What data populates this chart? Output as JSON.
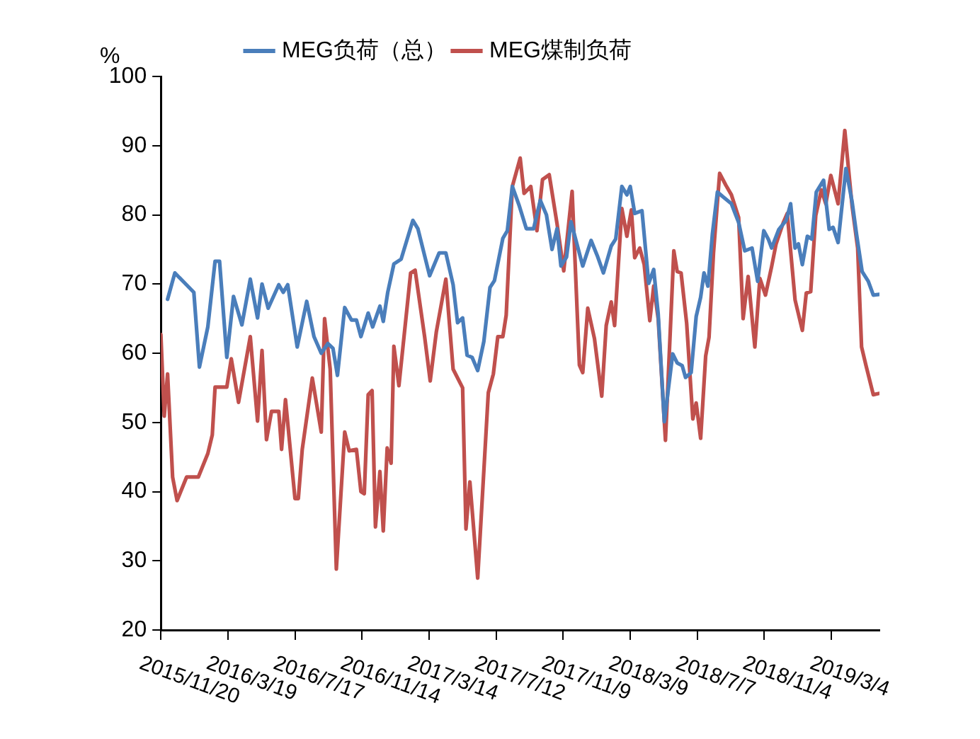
{
  "chart_data": {
    "type": "line",
    "ylabel": "%",
    "legend": "top",
    "marker": "none",
    "line_style": "solid",
    "grid": false,
    "xlim": [
      "2015-11-20",
      "2019-05-29"
    ],
    "xticks": [
      {
        "value": "2015-11-20",
        "label": "2015/11/20"
      },
      {
        "value": "2016-03-19",
        "label": "2016/3/19"
      },
      {
        "value": "2016-07-17",
        "label": "2016/7/17"
      },
      {
        "value": "2016-11-14",
        "label": "2016/11/14"
      },
      {
        "value": "2017-03-14",
        "label": "2017/3/14"
      },
      {
        "value": "2017-07-12",
        "label": "2017/7/12"
      },
      {
        "value": "2017-11-09",
        "label": "2017/11/9"
      },
      {
        "value": "2018-03-09",
        "label": "2018/3/9"
      },
      {
        "value": "2018-07-07",
        "label": "2018/7/7"
      },
      {
        "value": "2018-11-04",
        "label": "2018/11/4"
      },
      {
        "value": "2019-03-04",
        "label": "2019/3/4"
      }
    ],
    "ylim": [
      20,
      100
    ],
    "yticks": [
      20,
      30,
      40,
      50,
      60,
      70,
      80,
      90,
      100
    ],
    "series": [
      {
        "name": "MEG负荷（总）",
        "color": "#4a7ebb",
        "x": [
          "2015-12-02",
          "2015-12-15",
          "2016-01-01",
          "2016-01-18",
          "2016-01-28",
          "2016-02-12",
          "2016-02-25",
          "2016-03-04",
          "2016-03-17",
          "2016-03-29",
          "2016-04-13",
          "2016-04-28",
          "2016-05-11",
          "2016-05-19",
          "2016-05-30",
          "2016-06-18",
          "2016-06-26",
          "2016-07-04",
          "2016-07-21",
          "2016-08-07",
          "2016-08-20",
          "2016-09-02",
          "2016-09-14",
          "2016-09-23",
          "2016-10-01",
          "2016-10-14",
          "2016-10-26",
          "2016-11-04",
          "2016-11-12",
          "2016-11-25",
          "2016-12-03",
          "2016-12-16",
          "2016-12-22",
          "2016-12-30",
          "2017-01-10",
          "2017-01-23",
          "2017-02-13",
          "2017-02-22",
          "2017-03-15",
          "2017-04-01",
          "2017-04-13",
          "2017-04-26",
          "2017-05-04",
          "2017-05-13",
          "2017-05-21",
          "2017-05-30",
          "2017-06-09",
          "2017-06-20",
          "2017-07-01",
          "2017-07-09",
          "2017-07-24",
          "2017-08-01",
          "2017-08-10",
          "2017-08-22",
          "2017-09-04",
          "2017-09-17",
          "2017-09-29",
          "2017-10-10",
          "2017-10-20",
          "2017-10-29",
          "2017-11-05",
          "2017-11-15",
          "2017-11-23",
          "2017-12-14",
          "2017-12-29",
          "2018-01-09",
          "2018-01-20",
          "2018-02-03",
          "2018-02-11",
          "2018-02-22",
          "2018-03-03",
          "2018-03-09",
          "2018-03-17",
          "2018-03-30",
          "2018-04-11",
          "2018-04-20",
          "2018-04-28",
          "2018-05-09",
          "2018-05-24",
          "2018-06-01",
          "2018-06-10",
          "2018-06-16",
          "2018-06-26",
          "2018-07-05",
          "2018-07-13",
          "2018-07-19",
          "2018-07-26",
          "2018-08-03",
          "2018-08-12",
          "2018-08-22",
          "2018-09-06",
          "2018-09-19",
          "2018-09-30",
          "2018-10-13",
          "2018-10-23",
          "2018-11-03",
          "2018-11-11",
          "2018-11-17",
          "2018-11-30",
          "2018-12-13",
          "2018-12-21",
          "2018-12-29",
          "2019-01-04",
          "2019-01-11",
          "2019-01-20",
          "2019-01-28",
          "2019-02-05",
          "2019-02-18",
          "2019-02-28",
          "2019-03-07",
          "2019-03-16",
          "2019-03-30",
          "2019-04-10",
          "2019-04-18",
          "2019-04-28",
          "2019-05-09",
          "2019-05-18",
          "2019-05-29"
        ],
        "values": [
          67.8,
          71.6,
          70.2,
          68.8,
          58,
          63.8,
          73.3,
          73.3,
          59.4,
          68.2,
          64.1,
          70.7,
          65.1,
          70,
          66.5,
          69.9,
          68.8,
          69.9,
          60.9,
          67.5,
          62.4,
          60,
          61.4,
          60.7,
          56.8,
          66.6,
          64.8,
          64.8,
          62.4,
          65.8,
          63.8,
          66.8,
          64.6,
          68.8,
          72.9,
          73.6,
          79.2,
          78,
          71.2,
          74.5,
          74.5,
          69.9,
          64.4,
          65.1,
          59.7,
          59.4,
          57.5,
          61.7,
          69.5,
          70.5,
          76.6,
          77.7,
          84.1,
          81.4,
          78,
          78,
          82.1,
          80,
          75,
          78,
          72.6,
          73.9,
          79,
          72.6,
          76.3,
          74.1,
          71.6,
          75.5,
          76.5,
          84.1,
          82.9,
          84.1,
          80.2,
          80.6,
          70.1,
          72.1,
          65.7,
          50.1,
          59.9,
          58.6,
          58.2,
          56.5,
          57.2,
          65.3,
          68.1,
          71.6,
          69.7,
          77.2,
          83.3,
          82.6,
          81.6,
          78.9,
          74.8,
          75.2,
          70.4,
          77.7,
          76.5,
          75.2,
          77.9,
          79.2,
          81.6,
          75.2,
          75.8,
          72.8,
          76.9,
          76.5,
          83.3,
          85,
          77.9,
          78.2,
          76,
          86.7,
          81.9,
          77.2,
          71.8,
          70.4,
          68.4,
          68.5
        ]
      },
      {
        "name": "MEG煤制负荷",
        "color": "#c0504d",
        "x": [
          "2015-11-20",
          "2015-11-26",
          "2015-12-02",
          "2015-12-11",
          "2015-12-19",
          "2016-01-05",
          "2016-01-26",
          "2016-02-12",
          "2016-02-20",
          "2016-02-25",
          "2016-03-17",
          "2016-03-25",
          "2016-04-07",
          "2016-04-28",
          "2016-05-11",
          "2016-05-19",
          "2016-05-27",
          "2016-06-05",
          "2016-06-18",
          "2016-06-23",
          "2016-06-30",
          "2016-07-17",
          "2016-07-23",
          "2016-07-30",
          "2016-08-17",
          "2016-09-02",
          "2016-09-08",
          "2016-09-18",
          "2016-09-29",
          "2016-10-14",
          "2016-10-22",
          "2016-11-04",
          "2016-11-12",
          "2016-11-18",
          "2016-11-25",
          "2016-12-02",
          "2016-12-08",
          "2016-12-16",
          "2016-12-22",
          "2016-12-29",
          "2017-01-05",
          "2017-01-10",
          "2017-01-19",
          "2017-02-09",
          "2017-02-17",
          "2017-03-06",
          "2017-03-16",
          "2017-03-27",
          "2017-04-13",
          "2017-04-26",
          "2017-05-13",
          "2017-05-19",
          "2017-05-26",
          "2017-06-09",
          "2017-06-28",
          "2017-07-07",
          "2017-07-15",
          "2017-07-24",
          "2017-07-30",
          "2017-08-10",
          "2017-08-24",
          "2017-08-31",
          "2017-09-12",
          "2017-09-23",
          "2017-10-03",
          "2017-10-15",
          "2017-10-29",
          "2017-11-10",
          "2017-11-25",
          "2017-12-08",
          "2017-12-14",
          "2017-12-23",
          "2018-01-04",
          "2018-01-17",
          "2018-01-25",
          "2018-02-03",
          "2018-02-09",
          "2018-02-22",
          "2018-03-03",
          "2018-03-11",
          "2018-03-17",
          "2018-03-26",
          "2018-04-03",
          "2018-04-13",
          "2018-04-20",
          "2018-04-28",
          "2018-05-11",
          "2018-05-26",
          "2018-06-01",
          "2018-06-08",
          "2018-06-18",
          "2018-06-29",
          "2018-07-05",
          "2018-07-13",
          "2018-07-22",
          "2018-07-28",
          "2018-08-05",
          "2018-08-16",
          "2018-08-27",
          "2018-09-06",
          "2018-09-19",
          "2018-09-27",
          "2018-10-06",
          "2018-10-18",
          "2018-10-27",
          "2018-11-06",
          "2018-11-17",
          "2018-11-25",
          "2018-12-08",
          "2018-12-15",
          "2018-12-29",
          "2019-01-11",
          "2019-01-18",
          "2019-01-26",
          "2019-02-04",
          "2019-02-14",
          "2019-02-22",
          "2019-03-03",
          "2019-03-16",
          "2019-03-28",
          "2019-04-10",
          "2019-04-20",
          "2019-04-27",
          "2019-05-05",
          "2019-05-18",
          "2019-05-29"
        ],
        "values": [
          62.7,
          50.9,
          57,
          42.1,
          38.7,
          42.1,
          42.1,
          45.5,
          48.2,
          55.1,
          55.1,
          59.2,
          52.9,
          62.4,
          50.2,
          60.4,
          47.5,
          51.6,
          51.6,
          46.1,
          53.3,
          39,
          39,
          46.1,
          56.4,
          48.6,
          65,
          57.7,
          28.8,
          48.6,
          45.9,
          46.1,
          40,
          39.7,
          54,
          54.6,
          34.9,
          42.9,
          34.3,
          46.3,
          44.1,
          61,
          55.3,
          71.6,
          72,
          62.4,
          56,
          63.1,
          70.7,
          57.7,
          55,
          34.6,
          41.4,
          27.5,
          54.3,
          57,
          62.4,
          62.4,
          65.5,
          84.1,
          88.2,
          83.1,
          84.1,
          77.7,
          85.1,
          85.8,
          78.7,
          71.9,
          83.4,
          58.3,
          57.2,
          66.5,
          62.1,
          53.8,
          64,
          67.4,
          64,
          80.9,
          76.9,
          80.7,
          73.8,
          75.2,
          72.8,
          64.7,
          69.7,
          65,
          47.4,
          74.8,
          71.8,
          71.6,
          64.3,
          50.5,
          52.8,
          47.7,
          59.6,
          62.3,
          74.5,
          86,
          84.3,
          82.9,
          79.6,
          65,
          71.1,
          60.9,
          70.8,
          68.4,
          72.5,
          75.8,
          78.9,
          80.2,
          67.7,
          63.3,
          68.7,
          68.9,
          79.9,
          83.6,
          81.6,
          85.7,
          81.6,
          92.2,
          81.3,
          75.2,
          60.9,
          58.2,
          54,
          54.2
        ]
      }
    ]
  }
}
